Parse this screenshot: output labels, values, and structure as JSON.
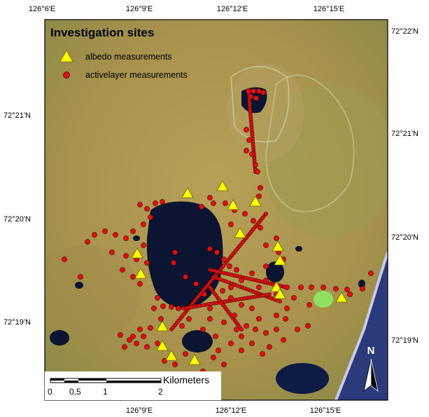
{
  "legend": {
    "title": "Investigation sites",
    "albedo_label": "albedo measurements",
    "activelayer_label": "activelayer measurements"
  },
  "axes": {
    "top": [
      "126°6'E",
      "126°9'E",
      "126°12'E",
      "126°15'E"
    ],
    "bottom": [
      "126°9'E",
      "126°12'E",
      "126°15'E"
    ],
    "left": [
      "72°21'N",
      "72°20'N",
      "72°19'N"
    ],
    "right": [
      "72°22'N",
      "72°21'N",
      "72°20'N",
      "72°19'N"
    ]
  },
  "scale_bar": {
    "unit": "Kilometers",
    "labels": [
      "0",
      "0,5",
      "1",
      "2"
    ]
  },
  "north_arrow": {
    "label": "N"
  },
  "colors": {
    "terrain": "#b39a52",
    "terrain_green": "#8f9a4c",
    "lake": "#0b1430",
    "activelayer_marker": "#e01010",
    "albedo_marker": "#ffff00",
    "sea": "#2b3a7a"
  }
}
